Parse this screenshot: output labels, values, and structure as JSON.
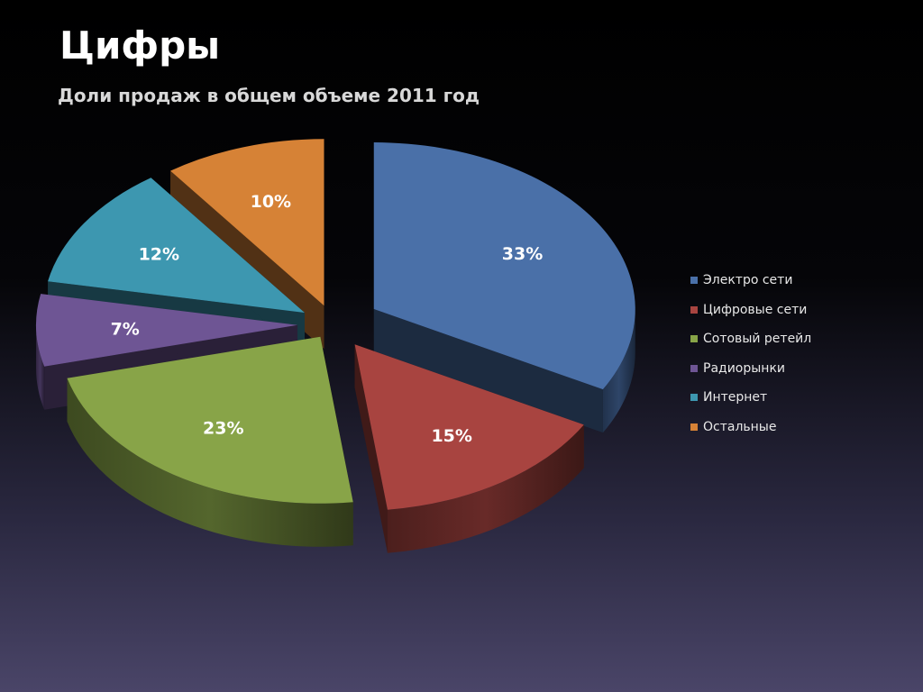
{
  "slide": {
    "title": "Цифры"
  },
  "chart_data": {
    "type": "pie",
    "title": "Доли продаж в общем объеме 2011 год",
    "categories": [
      "Электро сети",
      "Цифровые сети",
      "Сотовый ретейл",
      "Радиорынки",
      "Интернет",
      "Остальные"
    ],
    "values": [
      33,
      15,
      23,
      7,
      12,
      10
    ],
    "labels": [
      "33%",
      "15%",
      "23%",
      "7%",
      "12%",
      "10%"
    ],
    "colors": [
      "#4a70a8",
      "#a84440",
      "#88a448",
      "#6e5594",
      "#3d97b0",
      "#d68236"
    ],
    "legend_position": "right",
    "exploded": true,
    "style": "3d"
  }
}
